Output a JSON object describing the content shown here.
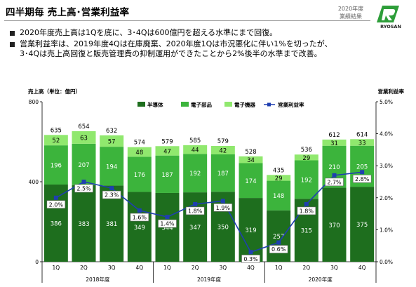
{
  "header": {
    "title": "四半期毎 売上高･営業利益率",
    "badge_line1": "2020年度",
    "badge_line2": "業績結果",
    "logo_text": "RYOSAN"
  },
  "bullets": [
    "2020年度売上高は1Qを底に、3･4Qは600億円を超える水準にまで回復。",
    "営業利益率は、2019年度4Qは在庫廃棄、2020年度1Qは市況悪化に伴い1%を切ったが、\n3･4Qは売上高回復と販売管理費の抑制運用ができたことから2%後半の水準まで改善。"
  ],
  "chart_data": {
    "type": "bar",
    "left_axis_label": "売上高（単位：億円）",
    "right_axis_label": "営業利益率",
    "ylim": [
      0,
      800
    ],
    "y_ticks": [
      0,
      400,
      800
    ],
    "y2lim": [
      0,
      5
    ],
    "y2_ticks": [
      "0.0%",
      "1.0%",
      "2.0%",
      "3.0%",
      "4.0%",
      "5.0%"
    ],
    "categories": [
      "1Q",
      "2Q",
      "3Q",
      "4Q",
      "1Q",
      "2Q",
      "3Q",
      "4Q",
      "1Q",
      "2Q",
      "3Q",
      "4Q"
    ],
    "year_groups": [
      {
        "label": "2018年度",
        "start": 0,
        "end": 3
      },
      {
        "label": "2019年度",
        "start": 4,
        "end": 7
      },
      {
        "label": "2020年度",
        "start": 8,
        "end": 11
      }
    ],
    "series": [
      {
        "name": "半導体",
        "color": "#1e6e1e",
        "values": [
          386,
          383,
          381,
          349,
          344,
          347,
          350,
          319,
          257,
          315,
          370,
          375
        ]
      },
      {
        "name": "電子部品",
        "color": "#3cb43c",
        "values": [
          196,
          207,
          194,
          176,
          187,
          192,
          187,
          174,
          148,
          192,
          210,
          205
        ]
      },
      {
        "name": "電子機器",
        "color": "#90e86e",
        "values": [
          52,
          63,
          57,
          48,
          47,
          44,
          42,
          34,
          29,
          29,
          31,
          33
        ]
      }
    ],
    "totals": [
      635,
      654,
      632,
      574,
      579,
      585,
      579,
      528,
      435,
      536,
      612,
      614
    ],
    "line": {
      "name": "営業利益率",
      "color": "#1f3fb0",
      "values": [
        2.0,
        2.5,
        2.3,
        1.6,
        1.4,
        1.8,
        1.9,
        0.3,
        0.6,
        1.8,
        2.7,
        2.8
      ],
      "labels": [
        "2.0%",
        "2.5%",
        "2.3%",
        "1.6%",
        "1.4%",
        "1.8%",
        "1.9%",
        "0.3%",
        "0.6%",
        "1.8%",
        "2.7%",
        "2.8%"
      ]
    }
  }
}
